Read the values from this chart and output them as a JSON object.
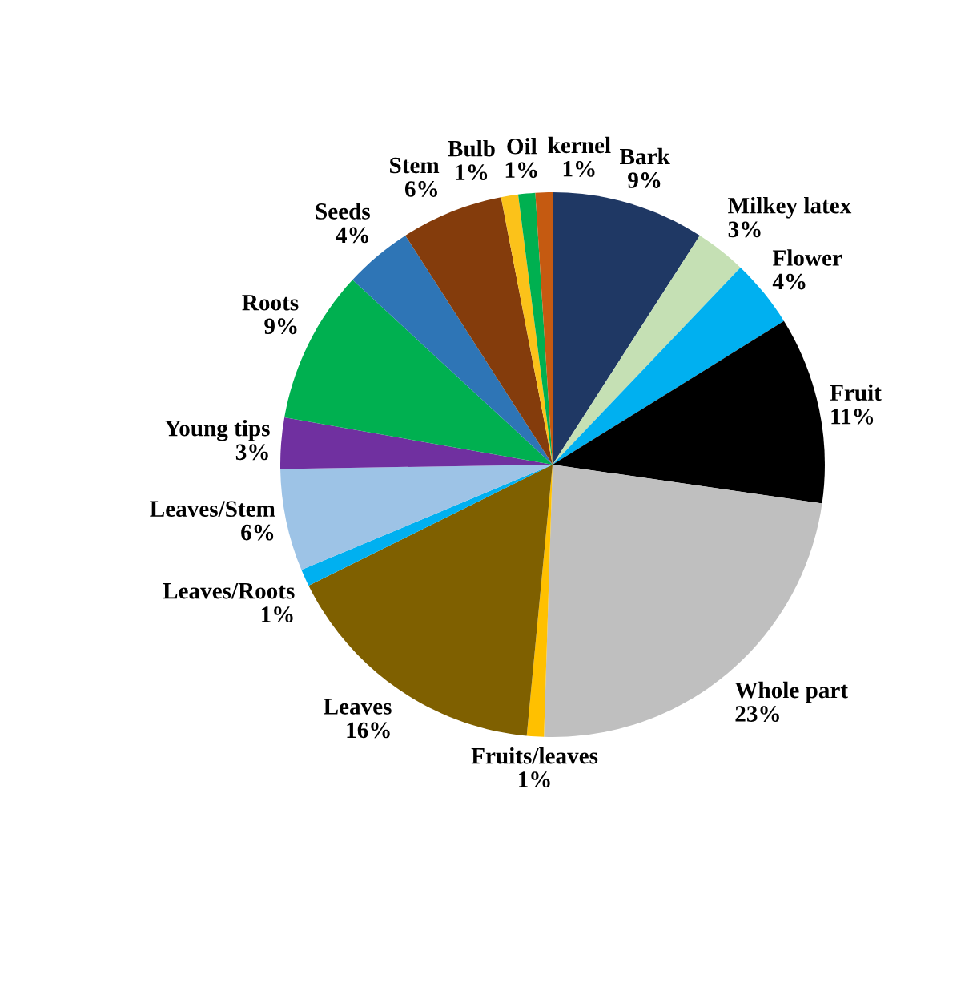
{
  "chart_data": {
    "type": "pie",
    "categories": [
      "Bark",
      "Milkey latex",
      "Flower",
      "Fruit",
      "Whole part",
      "Fruits/leaves",
      "Leaves",
      "Leaves/Roots",
      "Leaves/Stem",
      "Young tips",
      "Roots",
      "Seeds",
      "Stem",
      "Bulb",
      "Oil",
      "kernel"
    ],
    "values": [
      9,
      3,
      4,
      11,
      23,
      1,
      16,
      1,
      6,
      3,
      9,
      4,
      6,
      1,
      1,
      1
    ],
    "value_labels": [
      "9%",
      "3%",
      "4%",
      "11%",
      "23%",
      "1%",
      "16%",
      "1%",
      "6%",
      "3%",
      "9%",
      "4%",
      "6%",
      "1%",
      "1%",
      "1%"
    ],
    "colors": [
      "#1f3864",
      "#c5e0b4",
      "#00b0f0",
      "#000000",
      "#bfbfbf",
      "#ffc000",
      "#7f6000",
      "#00b0f0",
      "#9dc3e6",
      "#7030a0",
      "#00b050",
      "#2e75b6",
      "#843c0c",
      "#fbc21a",
      "#00b050",
      "#c55a11"
    ],
    "legend": false
  }
}
